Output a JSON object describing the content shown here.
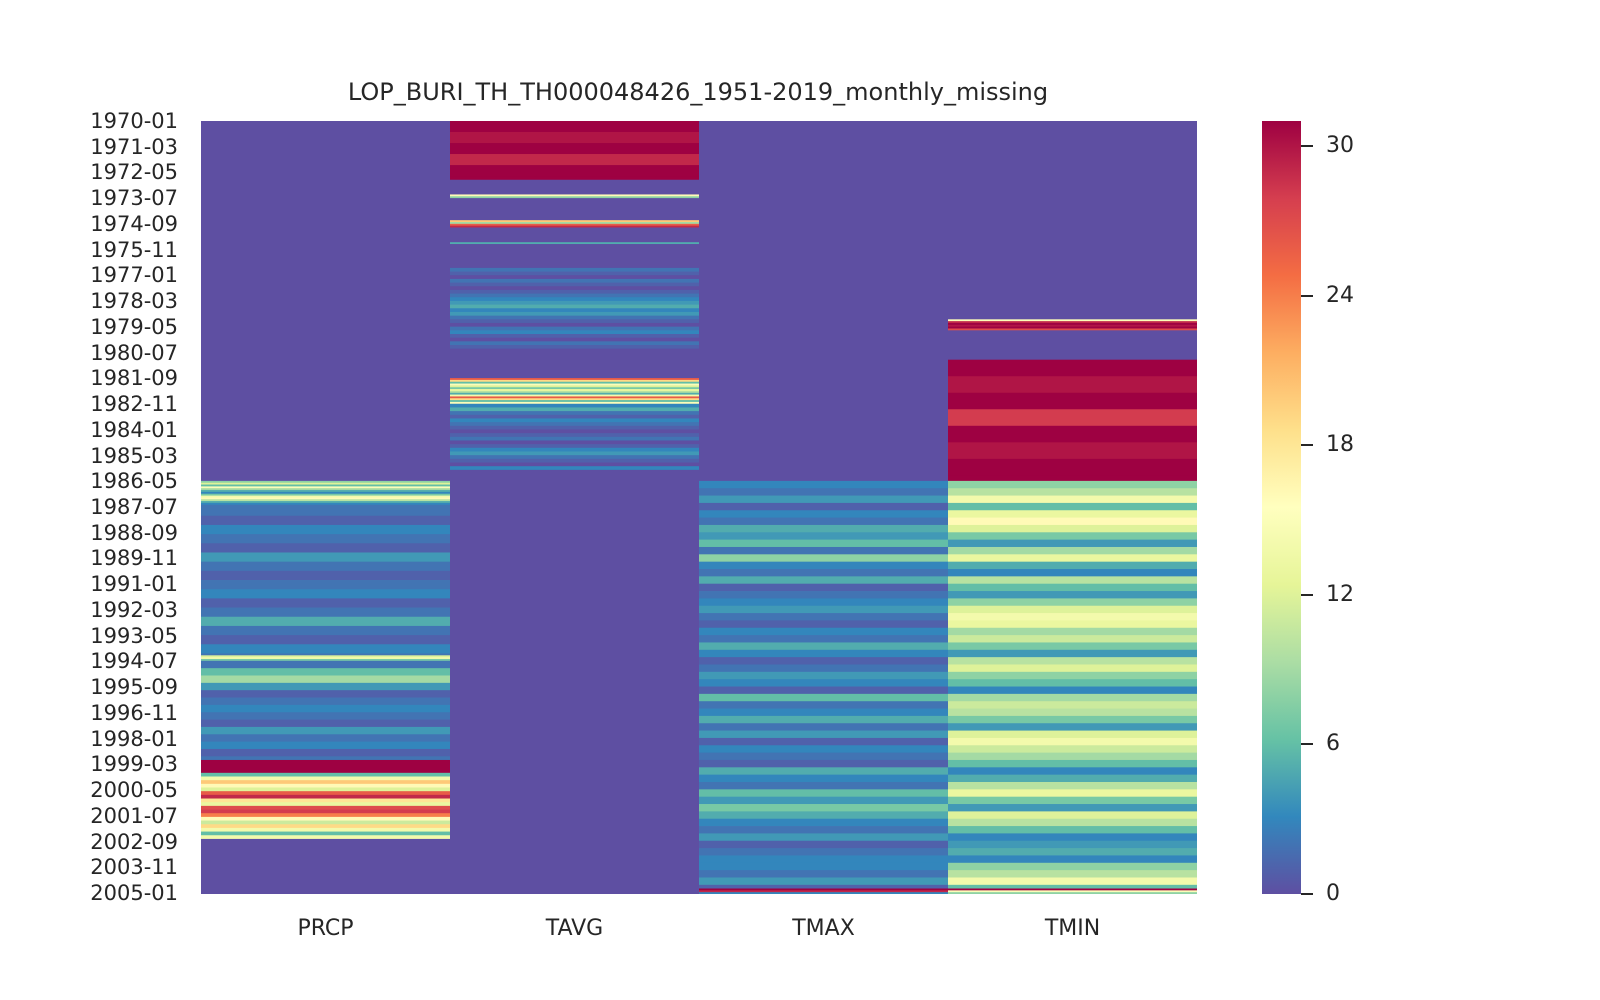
{
  "chart_data": {
    "type": "heatmap",
    "title": "LOP_BURI_TH_TH000048426_1951-2019_monthly_missing",
    "xlabel": "",
    "ylabel": "",
    "columns": [
      "PRCP",
      "TAVG",
      "TMAX",
      "TMIN"
    ],
    "y_start": "1970-01",
    "y_end": "2005-01",
    "y_tick_labels": [
      "1970-01",
      "1971-03",
      "1972-05",
      "1973-07",
      "1974-09",
      "1975-11",
      "1977-01",
      "1978-03",
      "1979-05",
      "1980-07",
      "1981-09",
      "1982-11",
      "1984-01",
      "1985-03",
      "1986-05",
      "1987-07",
      "1988-09",
      "1989-11",
      "1991-01",
      "1992-03",
      "1993-05",
      "1994-07",
      "1995-09",
      "1996-11",
      "1998-01",
      "1999-03",
      "2000-05",
      "2001-07",
      "2002-09",
      "2003-11",
      "2005-01"
    ],
    "colorbar": {
      "vmin": 0,
      "vmax": 31,
      "ticks": [
        0,
        6,
        12,
        18,
        24,
        30
      ],
      "colormap": "Spectral_r"
    },
    "palette": [
      "#5e4fa2",
      "#3288bd",
      "#66c2a5",
      "#abdda4",
      "#e6f598",
      "#ffffbf",
      "#fee08b",
      "#fdae61",
      "#f46d43",
      "#d53e4f",
      "#9e0142"
    ],
    "grid": false,
    "segments": {
      "PRCP": [
        {
          "from": "1970-01",
          "to": "1986-04",
          "values": [
            0
          ]
        },
        {
          "from": "1986-05",
          "to": "1986-12",
          "values": [
            8,
            12,
            6,
            15,
            9,
            5,
            3,
            7
          ]
        },
        {
          "from": "1987-01",
          "to": "1987-06",
          "values": [
            14,
            16,
            10,
            5,
            3,
            2
          ]
        },
        {
          "from": "1987-07",
          "to": "1994-03",
          "values": [
            2,
            1,
            3,
            2,
            1,
            4,
            2,
            1,
            2,
            3,
            1,
            2,
            5,
            2,
            1,
            3,
            2,
            1
          ]
        },
        {
          "from": "1994-04",
          "to": "1994-06",
          "values": [
            12,
            14,
            7
          ]
        },
        {
          "from": "1994-07",
          "to": "1998-12",
          "values": [
            2,
            6,
            9,
            4,
            1,
            2,
            3,
            2,
            1,
            4,
            2,
            3,
            1,
            2,
            5
          ]
        },
        {
          "from": "1999-01",
          "to": "1999-07",
          "values": [
            31
          ]
        },
        {
          "from": "1999-08",
          "to": "2002-07",
          "values": [
            6,
            14,
            20,
            16,
            12,
            26,
            29,
            18,
            13,
            27,
            28,
            24,
            16,
            11,
            19,
            14
          ]
        },
        {
          "from": "2002-08",
          "to": "2005-01",
          "values": [
            0
          ]
        }
      ],
      "TAVG": [
        {
          "from": "1970-01",
          "to": "1972-08",
          "values": [
            31,
            30,
            31,
            29,
            31
          ]
        },
        {
          "from": "1972-09",
          "to": "1973-04",
          "values": [
            0
          ]
        },
        {
          "from": "1973-05",
          "to": "1973-06",
          "values": [
            16,
            8
          ]
        },
        {
          "from": "1973-07",
          "to": "1974-06",
          "values": [
            0
          ]
        },
        {
          "from": "1974-07",
          "to": "1974-10",
          "values": [
            20,
            9,
            26,
            29
          ]
        },
        {
          "from": "1974-11",
          "to": "1975-06",
          "values": [
            0
          ]
        },
        {
          "from": "1975-07",
          "to": "1975-07",
          "values": [
            5
          ]
        },
        {
          "from": "1975-08",
          "to": "1976-08",
          "values": [
            0
          ]
        },
        {
          "from": "1976-09",
          "to": "1980-06",
          "values": [
            2,
            1,
            0,
            2,
            1,
            0,
            1,
            2,
            3,
            4,
            5,
            3,
            4,
            2,
            1,
            0,
            2,
            3,
            1,
            0,
            2,
            1,
            0
          ]
        },
        {
          "from": "1980-07",
          "to": "1981-08",
          "values": [
            0
          ]
        },
        {
          "from": "1981-09",
          "to": "1982-10",
          "values": [
            26,
            19,
            6,
            15,
            12,
            7,
            13,
            10,
            5,
            14
          ]
        },
        {
          "from": "1982-11",
          "to": "1985-10",
          "values": [
            3,
            5,
            2,
            1,
            3,
            2,
            1,
            0,
            1,
            2,
            0,
            1,
            3,
            4,
            2,
            1,
            0
          ]
        },
        {
          "from": "1985-11",
          "to": "2005-01",
          "values": [
            0
          ]
        }
      ],
      "TMAX": [
        {
          "from": "1970-01",
          "to": "1986-04",
          "values": [
            0
          ]
        },
        {
          "from": "1986-05",
          "to": "2004-10",
          "values": [
            3,
            2,
            4,
            1,
            3,
            2,
            5,
            4,
            6,
            2,
            8,
            3,
            2,
            5,
            1,
            2,
            3,
            4,
            2,
            1,
            3,
            2,
            5,
            3,
            1,
            2,
            4,
            3,
            1,
            6,
            2,
            3,
            5,
            2,
            4,
            1,
            3,
            2,
            1,
            5,
            3,
            2,
            6,
            4,
            7,
            5,
            3,
            2,
            4,
            1,
            2,
            3
          ]
        },
        {
          "from": "2004-11",
          "to": "2004-12",
          "values": [
            31,
            29
          ]
        },
        {
          "from": "2005-01",
          "to": "2005-01",
          "values": [
            3
          ]
        }
      ],
      "TMIN": [
        {
          "from": "1970-01",
          "to": "1978-12",
          "values": [
            0
          ]
        },
        {
          "from": "1979-01",
          "to": "1979-06",
          "values": [
            15,
            29,
            31,
            30,
            31,
            27
          ]
        },
        {
          "from": "1979-07",
          "to": "1980-10",
          "values": [
            0
          ]
        },
        {
          "from": "1980-11",
          "to": "1986-04",
          "values": [
            31,
            30,
            31,
            28,
            31,
            30,
            31
          ]
        },
        {
          "from": "1986-05",
          "to": "2004-10",
          "values": [
            8,
            10,
            14,
            6,
            13,
            16,
            12,
            7,
            4,
            9,
            13,
            5,
            3,
            10,
            6,
            4,
            8,
            12,
            14,
            13,
            9,
            11,
            7,
            4,
            10,
            12,
            8,
            6,
            3,
            9,
            11,
            10,
            7,
            4,
            12,
            14,
            11,
            9,
            6,
            3,
            5,
            10,
            13,
            7,
            4,
            12,
            10,
            6,
            3,
            4,
            5,
            3
          ]
        },
        {
          "from": "2004-11",
          "to": "2004-12",
          "values": [
            31,
            15
          ]
        },
        {
          "from": "2005-01",
          "to": "2005-01",
          "values": [
            8
          ]
        }
      ]
    }
  }
}
